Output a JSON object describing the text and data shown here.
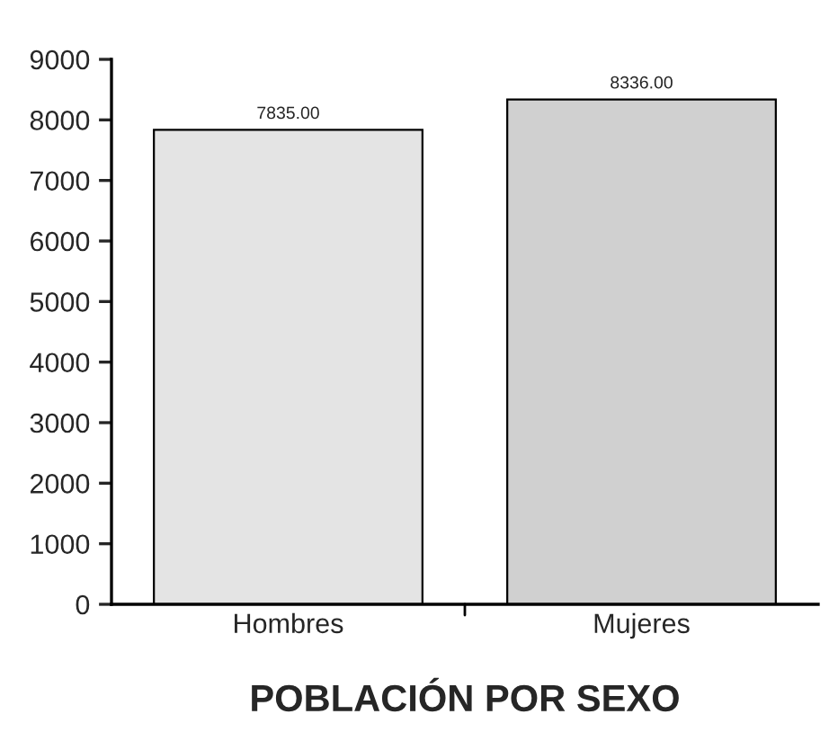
{
  "chart_data": {
    "type": "bar",
    "title": "POBLACIÓN POR SEXO",
    "categories": [
      "Hombres",
      "Mujeres"
    ],
    "values": [
      7835,
      8336
    ],
    "colors": [
      "#e4e4e4",
      "#d0d0d0"
    ],
    "value_labels": [
      "7835.00",
      "8336.00"
    ],
    "ylim": [
      0,
      9000
    ],
    "yticks": [
      0,
      1000,
      2000,
      3000,
      4000,
      5000,
      6000,
      7000,
      8000,
      9000
    ],
    "grid": false,
    "legend": false
  }
}
